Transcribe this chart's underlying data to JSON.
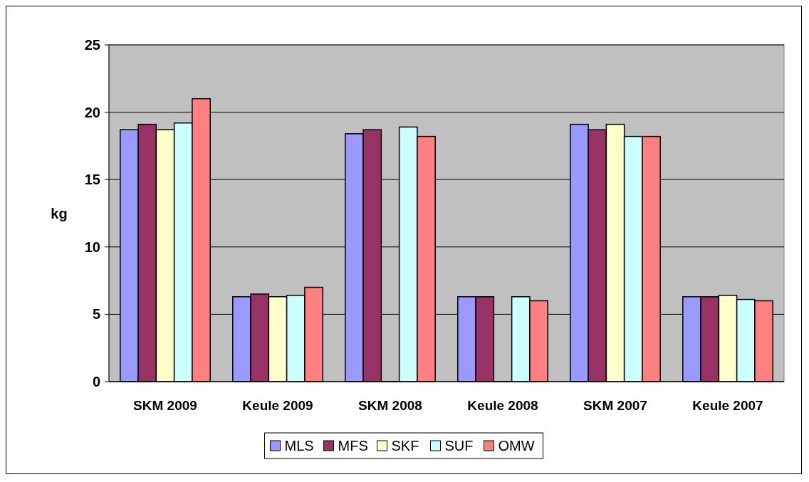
{
  "chart_data": {
    "type": "bar",
    "ylabel": "kg",
    "categories": [
      "SKM 2009",
      "Keule 2009",
      "SKM 2008",
      "Keule 2008",
      "SKM 2007",
      "Keule 2007"
    ],
    "series": [
      {
        "name": "MLS",
        "color": "#9999ff",
        "values": [
          18.7,
          6.3,
          18.4,
          6.3,
          19.1,
          6.3
        ]
      },
      {
        "name": "MFS",
        "color": "#993366",
        "values": [
          19.1,
          6.5,
          18.7,
          6.3,
          18.7,
          6.3
        ]
      },
      {
        "name": "SKF",
        "color": "#ffffcc",
        "values": [
          18.7,
          6.3,
          0,
          0,
          19.1,
          6.4
        ]
      },
      {
        "name": "SUF",
        "color": "#ccffff",
        "values": [
          19.2,
          6.4,
          18.9,
          6.3,
          18.2,
          6.1
        ]
      },
      {
        "name": "OMW",
        "color": "#ff8080",
        "values": [
          21.0,
          7.0,
          18.2,
          6.0,
          18.2,
          6.0
        ]
      }
    ],
    "ylim": [
      0,
      25
    ],
    "yticks": [
      0,
      5,
      10,
      15,
      20,
      25
    ],
    "grid": "y",
    "legend": "bottom"
  }
}
